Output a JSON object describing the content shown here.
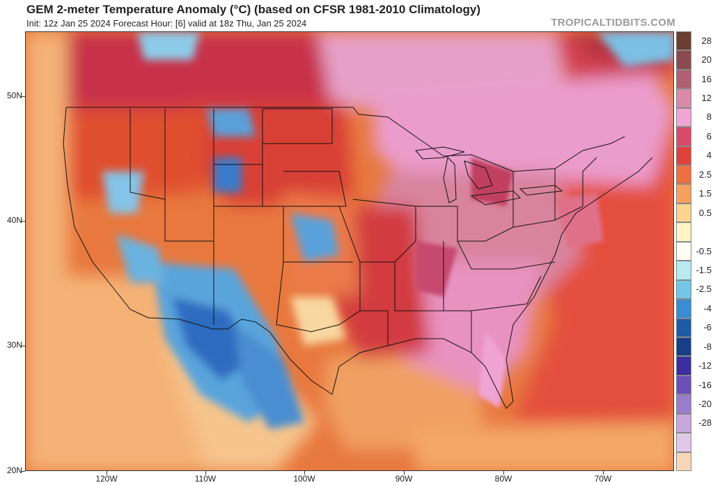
{
  "header": {
    "title": "GEM 2-meter Temperature Anomaly (°C) (based on CFSR 1981-2010 Climatology)",
    "subtitle": "Init: 12z Jan 25 2024   Forecast Hour: [6]   valid at 18z Thu, Jan 25 2024",
    "credit": "TROPICALTIDBITS.COM"
  },
  "axes": {
    "lat_labels": [
      "50N",
      "40N",
      "30N",
      "20N"
    ],
    "lon_labels": [
      "120W",
      "110W",
      "100W",
      "90W",
      "80W",
      "70W"
    ]
  },
  "legend": {
    "unit": "°C",
    "entries": [
      {
        "label": "28",
        "color": "#6b4030"
      },
      {
        "label": "20",
        "color": "#8a4a50"
      },
      {
        "label": "16",
        "color": "#b06070"
      },
      {
        "label": "12",
        "color": "#d88aa8"
      },
      {
        "label": "8",
        "color": "#f0a6d2"
      },
      {
        "label": "6",
        "color": "#d84a6a"
      },
      {
        "label": "4",
        "color": "#e0403a"
      },
      {
        "label": "2.5",
        "color": "#ee7040"
      },
      {
        "label": "1.5",
        "color": "#f6a060"
      },
      {
        "label": "0.5",
        "color": "#fbd490"
      },
      {
        "label": "",
        "color": "#fff4c4"
      },
      {
        "label": "-0.5",
        "color": "#fffff4"
      },
      {
        "label": "-1.5",
        "color": "#b8eaf0"
      },
      {
        "label": "-2.5",
        "color": "#72c6e6"
      },
      {
        "label": "-4",
        "color": "#3a8cd4"
      },
      {
        "label": "-6",
        "color": "#1e5aa6"
      },
      {
        "label": "-8",
        "color": "#173e86"
      },
      {
        "label": "-12",
        "color": "#3a2ea0"
      },
      {
        "label": "-16",
        "color": "#6a50b8"
      },
      {
        "label": "-20",
        "color": "#9a7ccc"
      },
      {
        "label": "-28",
        "color": "#c8a8dc"
      },
      {
        "label": "",
        "color": "#e0c8e6"
      },
      {
        "label": "",
        "color": "#f6d6b8"
      }
    ]
  },
  "colors": {
    "ocean_warm": "#e8703c",
    "pacific": "#f4b276",
    "gulf": "#f0a062",
    "strong_warm": "#d8344a",
    "very_warm": "#e88ab8",
    "cool": "#64b4e0",
    "cold": "#2e6cc0"
  }
}
